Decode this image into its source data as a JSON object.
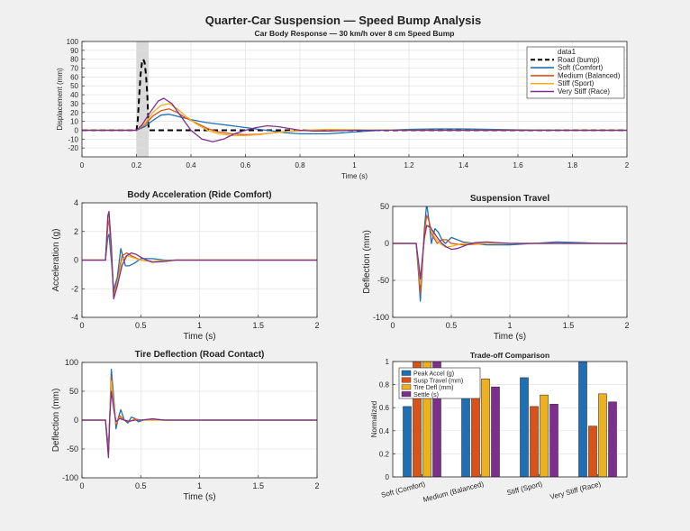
{
  "figure_title": "Quarter-Car Suspension — Speed Bump Analysis",
  "colors": {
    "road": "#000000",
    "soft": "#1f6fb4",
    "medium": "#d95319",
    "stiff": "#edb120",
    "very_stiff": "#7e2f8e",
    "bump_band": "#d9d9d9"
  },
  "chart_data": [
    {
      "id": "body",
      "type": "line",
      "title": "Car Body Response — 30 km/h over 8 cm Speed Bump",
      "xlabel": "Time (s)",
      "ylabel": "Displacement (mm)",
      "xlim": [
        0,
        2
      ],
      "ylim": [
        -30,
        100
      ],
      "xticks": [
        0,
        0.2,
        0.4,
        0.6,
        0.8,
        1,
        1.2,
        1.4,
        1.6,
        1.8,
        2
      ],
      "yticks": [
        -20,
        -10,
        0,
        10,
        20,
        30,
        40,
        50,
        60,
        70,
        80,
        90,
        100
      ],
      "grid": true,
      "shaded_band": [
        0.2,
        0.245
      ],
      "legend": {
        "position": "top-right",
        "entries": [
          {
            "label": "data1",
            "style": "none"
          },
          {
            "label": "Road (bump)",
            "style": "dashed",
            "color": "#000000"
          },
          {
            "label": "Soft (Comfort)",
            "style": "solid",
            "color": "#1f6fb4"
          },
          {
            "label": "Medium (Balanced)",
            "style": "solid",
            "color": "#d95319"
          },
          {
            "label": "Stiff (Sport)",
            "style": "solid",
            "color": "#edb120"
          },
          {
            "label": "Very Stiff (Race)",
            "style": "solid",
            "color": "#7e2f8e"
          }
        ]
      },
      "series": [
        {
          "name": "Road (bump)",
          "color": "#000000",
          "dashed": true,
          "x": [
            0,
            0.2,
            0.205,
            0.21,
            0.215,
            0.22,
            0.225,
            0.23,
            0.235,
            0.24,
            0.245,
            2
          ],
          "y": [
            0,
            0,
            12,
            38,
            62,
            76,
            80,
            76,
            62,
            38,
            0,
            0
          ]
        },
        {
          "name": "Soft (Comfort)",
          "color": "#1f6fb4",
          "x": [
            0,
            0.2,
            0.23,
            0.26,
            0.29,
            0.32,
            0.36,
            0.4,
            0.45,
            0.5,
            0.55,
            0.6,
            0.65,
            0.7,
            0.75,
            0.8,
            0.85,
            0.9,
            1.0,
            1.1,
            1.2,
            1.3,
            1.4,
            1.5,
            1.6,
            1.7,
            1.8,
            2.0
          ],
          "y": [
            0,
            0,
            4,
            11,
            17,
            18,
            15,
            12,
            9,
            7,
            5,
            3,
            1,
            -1,
            -3,
            -4,
            -4,
            -4,
            -2,
            0,
            1,
            1.5,
            1.5,
            1,
            0.5,
            0.2,
            0,
            0
          ]
        },
        {
          "name": "Medium (Balanced)",
          "color": "#d95319",
          "x": [
            0,
            0.2,
            0.23,
            0.26,
            0.29,
            0.32,
            0.35,
            0.38,
            0.42,
            0.46,
            0.5,
            0.55,
            0.6,
            0.65,
            0.7,
            0.75,
            0.8,
            0.9,
            1.0,
            1.2,
            2.0
          ],
          "y": [
            0,
            0,
            6,
            16,
            22,
            24,
            20,
            14,
            8,
            2,
            -2,
            -4,
            -5,
            -4.5,
            -3,
            -1.5,
            -0.5,
            0.5,
            0.5,
            0,
            0
          ]
        },
        {
          "name": "Stiff (Sport)",
          "color": "#edb120",
          "x": [
            0,
            0.2,
            0.23,
            0.26,
            0.29,
            0.32,
            0.35,
            0.38,
            0.42,
            0.46,
            0.5,
            0.55,
            0.6,
            0.65,
            0.7,
            0.75,
            0.8,
            0.9,
            1.0,
            1.2,
            2.0
          ],
          "y": [
            0,
            0,
            7,
            20,
            28,
            30,
            24,
            16,
            7,
            0,
            -4,
            -6,
            -6,
            -5,
            -3,
            -1.5,
            0,
            1,
            0.5,
            0,
            0
          ]
        },
        {
          "name": "Very Stiff (Race)",
          "color": "#7e2f8e",
          "x": [
            0,
            0.2,
            0.22,
            0.25,
            0.28,
            0.3,
            0.33,
            0.36,
            0.4,
            0.44,
            0.48,
            0.52,
            0.56,
            0.6,
            0.64,
            0.68,
            0.72,
            0.76,
            0.8,
            0.85,
            0.9,
            1.0,
            1.2,
            2.0
          ],
          "y": [
            0,
            0,
            6,
            20,
            33,
            36,
            30,
            17,
            0,
            -10,
            -13,
            -10,
            -4,
            0,
            3,
            5,
            4,
            2,
            0,
            -1,
            -1,
            0,
            0,
            0
          ]
        }
      ]
    },
    {
      "id": "accel",
      "type": "line",
      "title": "Body Acceleration (Ride Comfort)",
      "xlabel": "Time (s)",
      "ylabel": "Acceleration (g)",
      "xlim": [
        0,
        2
      ],
      "ylim": [
        -4,
        4
      ],
      "xticks": [
        0,
        0.5,
        1,
        1.5,
        2
      ],
      "yticks": [
        -4,
        -2,
        0,
        2,
        4
      ],
      "grid": true,
      "series": [
        {
          "name": "Soft (Comfort)",
          "color": "#1f6fb4",
          "x": [
            0,
            0.2,
            0.22,
            0.23,
            0.25,
            0.27,
            0.3,
            0.33,
            0.37,
            0.4,
            0.45,
            0.5,
            0.6,
            0.7,
            0.8,
            1.0,
            2.0
          ],
          "y": [
            0,
            0,
            1.6,
            1.8,
            0,
            -2.1,
            -1.2,
            0.8,
            -0.4,
            -0.4,
            -0.2,
            0.1,
            0.1,
            0,
            0,
            0,
            0
          ]
        },
        {
          "name": "Medium (Balanced)",
          "color": "#d95319",
          "x": [
            0,
            0.2,
            0.22,
            0.23,
            0.25,
            0.27,
            0.3,
            0.34,
            0.38,
            0.42,
            0.5,
            0.6,
            0.8,
            1.0,
            2.0
          ],
          "y": [
            0,
            0,
            2.4,
            2.8,
            0.5,
            -2.4,
            -1.5,
            0.3,
            0.5,
            0.3,
            0,
            -0.1,
            0,
            0,
            0
          ]
        },
        {
          "name": "Stiff (Sport)",
          "color": "#edb120",
          "x": [
            0,
            0.2,
            0.22,
            0.23,
            0.25,
            0.27,
            0.3,
            0.34,
            0.38,
            0.42,
            0.5,
            0.6,
            0.8,
            1.0,
            2.0
          ],
          "y": [
            0,
            0,
            2.9,
            3.2,
            0.8,
            -2.6,
            -1.6,
            0,
            0.3,
            0.2,
            0,
            -0.1,
            0,
            0,
            0
          ]
        },
        {
          "name": "Very Stiff (Race)",
          "color": "#7e2f8e",
          "x": [
            0,
            0.2,
            0.22,
            0.23,
            0.25,
            0.27,
            0.3,
            0.34,
            0.38,
            0.42,
            0.46,
            0.5,
            0.55,
            0.6,
            0.7,
            0.8,
            1.0,
            2.0
          ],
          "y": [
            0,
            0,
            3.1,
            3.4,
            1,
            -2.7,
            -1.8,
            -0.4,
            0.3,
            0.5,
            0.4,
            0.2,
            0,
            -0.15,
            -0.1,
            0,
            0,
            0
          ]
        }
      ]
    },
    {
      "id": "travel",
      "type": "line",
      "title": "Suspension Travel",
      "xlabel": "Time (s)",
      "ylabel": "Deflection (mm)",
      "xlim": [
        0,
        2
      ],
      "ylim": [
        -100,
        50
      ],
      "xticks": [
        0,
        0.5,
        1,
        1.5,
        2
      ],
      "yticks": [
        -100,
        -50,
        0,
        50
      ],
      "grid": true,
      "series": [
        {
          "name": "Soft (Comfort)",
          "color": "#1f6fb4",
          "x": [
            0,
            0.2,
            0.22,
            0.235,
            0.25,
            0.27,
            0.29,
            0.31,
            0.33,
            0.36,
            0.39,
            0.42,
            0.45,
            0.5,
            0.55,
            0.6,
            0.7,
            0.8,
            1.0,
            1.2,
            1.4,
            1.6,
            1.8,
            2.0
          ],
          "y": [
            0,
            0,
            -40,
            -78,
            -40,
            20,
            54,
            30,
            0,
            20,
            15,
            5,
            0,
            8,
            5,
            2,
            0,
            -2,
            -2,
            0,
            2,
            1,
            0,
            0
          ]
        },
        {
          "name": "Medium (Balanced)",
          "color": "#d95319",
          "x": [
            0,
            0.2,
            0.22,
            0.235,
            0.25,
            0.27,
            0.29,
            0.31,
            0.34,
            0.38,
            0.42,
            0.46,
            0.5,
            0.6,
            0.7,
            0.8,
            1.0,
            1.2,
            2.0
          ],
          "y": [
            0,
            0,
            -35,
            -68,
            -35,
            15,
            38,
            30,
            10,
            0,
            5,
            5,
            0,
            -2,
            -1,
            0,
            0,
            0,
            0
          ]
        },
        {
          "name": "Stiff (Sport)",
          "color": "#edb120",
          "x": [
            0,
            0.2,
            0.22,
            0.235,
            0.25,
            0.27,
            0.29,
            0.32,
            0.36,
            0.4,
            0.45,
            0.5,
            0.55,
            0.6,
            0.7,
            0.8,
            1.0,
            2.0
          ],
          "y": [
            0,
            0,
            -28,
            -55,
            -28,
            5,
            25,
            20,
            8,
            0,
            -5,
            -4,
            -2,
            0,
            0,
            0,
            0,
            0
          ]
        },
        {
          "name": "Very Stiff (Race)",
          "color": "#7e2f8e",
          "x": [
            0,
            0.2,
            0.22,
            0.235,
            0.25,
            0.27,
            0.29,
            0.32,
            0.35,
            0.38,
            0.42,
            0.46,
            0.5,
            0.55,
            0.6,
            0.65,
            0.7,
            0.8,
            1.0,
            2.0
          ],
          "y": [
            0,
            0,
            -25,
            -48,
            -25,
            8,
            24,
            22,
            15,
            8,
            0,
            -5,
            -8,
            -7,
            -4,
            -1,
            1,
            2,
            0,
            0
          ]
        }
      ]
    },
    {
      "id": "tire",
      "type": "line",
      "title": "Tire Deflection (Road Contact)",
      "xlabel": "Time (s)",
      "ylabel": "Deflection (mm)",
      "xlim": [
        0,
        2
      ],
      "ylim": [
        -100,
        100
      ],
      "xticks": [
        0,
        0.5,
        1,
        1.5,
        2
      ],
      "yticks": [
        -100,
        -50,
        0,
        50,
        100
      ],
      "grid": true,
      "series": [
        {
          "name": "Soft (Comfort)",
          "color": "#1f6fb4",
          "x": [
            0,
            0.2,
            0.215,
            0.225,
            0.235,
            0.25,
            0.27,
            0.29,
            0.31,
            0.33,
            0.36,
            0.39,
            0.42,
            0.45,
            0.48,
            0.52,
            0.6,
            0.7,
            0.8,
            1.0,
            2.0
          ],
          "y": [
            0,
            0,
            -30,
            -50,
            0,
            88,
            40,
            -15,
            5,
            18,
            0,
            -5,
            5,
            3,
            -3,
            0,
            2,
            0,
            0,
            0,
            0
          ]
        },
        {
          "name": "Medium (Balanced)",
          "color": "#d95319",
          "x": [
            0,
            0.2,
            0.215,
            0.225,
            0.235,
            0.25,
            0.27,
            0.29,
            0.32,
            0.36,
            0.4,
            0.45,
            0.5,
            0.6,
            0.8,
            1.0,
            2.0
          ],
          "y": [
            0,
            0,
            -35,
            -55,
            0,
            75,
            30,
            -8,
            8,
            0,
            -3,
            2,
            0,
            0,
            0,
            0,
            0
          ]
        },
        {
          "name": "Stiff (Sport)",
          "color": "#edb120",
          "x": [
            0,
            0.2,
            0.215,
            0.225,
            0.235,
            0.25,
            0.27,
            0.29,
            0.32,
            0.36,
            0.4,
            0.45,
            0.5,
            0.6,
            0.8,
            1.0,
            2.0
          ],
          "y": [
            0,
            0,
            -38,
            -60,
            0,
            68,
            25,
            -5,
            5,
            0,
            -2,
            1,
            0,
            0,
            0,
            0,
            0
          ]
        },
        {
          "name": "Very Stiff (Race)",
          "color": "#7e2f8e",
          "x": [
            0,
            0.2,
            0.215,
            0.225,
            0.235,
            0.25,
            0.27,
            0.29,
            0.32,
            0.36,
            0.4,
            0.45,
            0.5,
            0.6,
            0.7,
            0.8,
            1.0,
            2.0
          ],
          "y": [
            0,
            0,
            -40,
            -65,
            0,
            50,
            20,
            -3,
            3,
            0,
            -2,
            0,
            0,
            2,
            0,
            0,
            0,
            0
          ]
        }
      ]
    },
    {
      "id": "tradeoff",
      "type": "bar",
      "title": "Trade-off Comparison",
      "ylabel": "Normalized",
      "ylim": [
        0,
        1
      ],
      "yticks": [
        0,
        0.2,
        0.4,
        0.6,
        0.8,
        1
      ],
      "categories": [
        "Soft (Comfort)",
        "Medium (Balanced)",
        "Stiff (Sport)",
        "Very Stiff (Race)"
      ],
      "grid": true,
      "legend": {
        "position": "top-left"
      },
      "series": [
        {
          "name": "Peak Accel (g)",
          "color": "#1f6fb4",
          "values": [
            0.61,
            0.8,
            0.86,
            1.0
          ]
        },
        {
          "name": "Susp Travel (mm)",
          "color": "#d95319",
          "values": [
            1.0,
            0.84,
            0.61,
            0.44
          ]
        },
        {
          "name": "Tire Defl (mm)",
          "color": "#edb120",
          "values": [
            1.0,
            0.85,
            0.71,
            0.72
          ]
        },
        {
          "name": "Settle (s)",
          "color": "#7e2f8e",
          "values": [
            1.0,
            0.78,
            0.63,
            0.65
          ]
        }
      ]
    }
  ]
}
